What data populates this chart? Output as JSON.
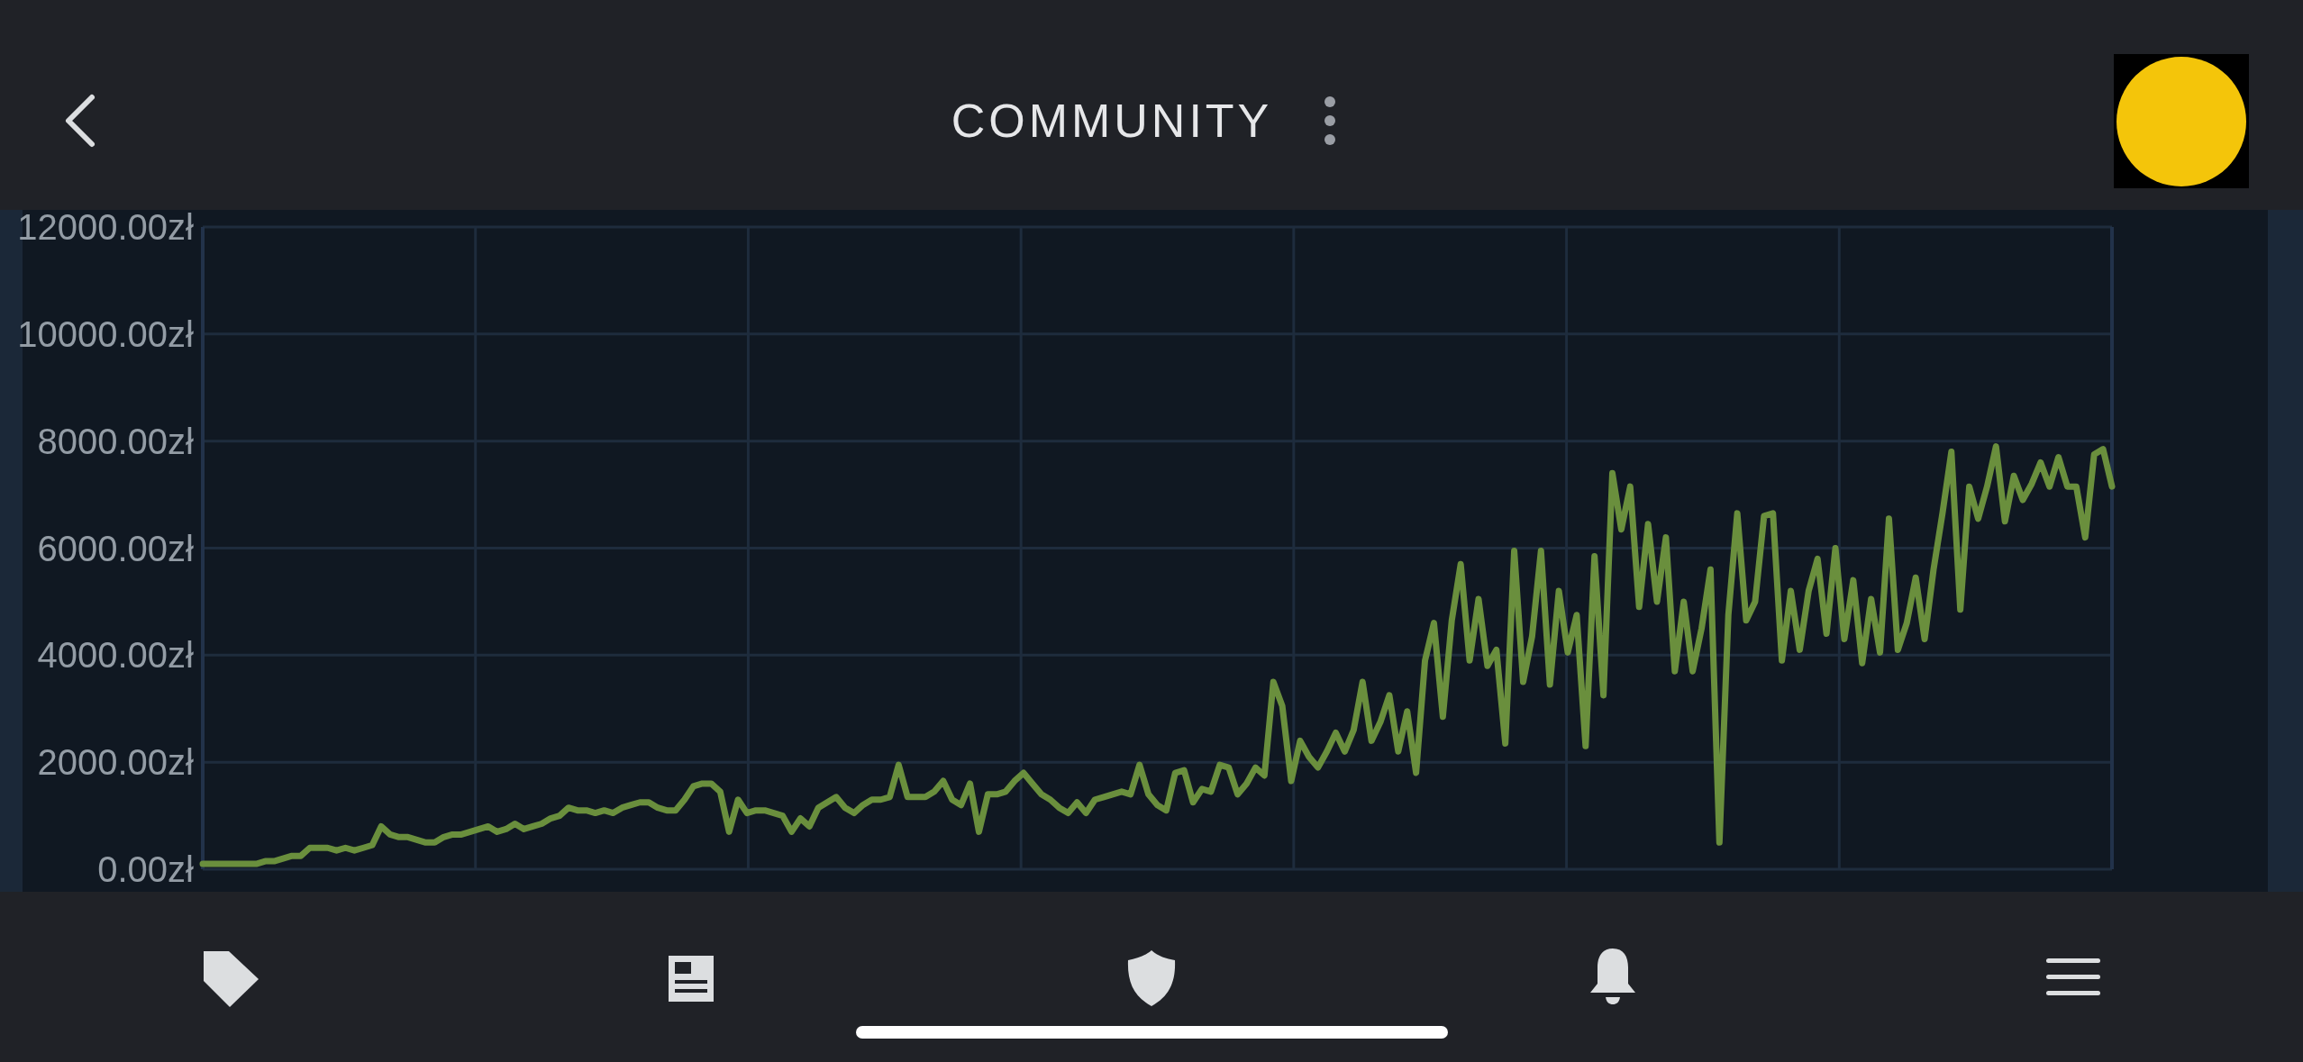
{
  "chart_data": {
    "type": "line",
    "title": "COMMUNITY",
    "categories": [
      null,
      null,
      null,
      null,
      null,
      null,
      null,
      null,
      null,
      null,
      null,
      null,
      null,
      null,
      null,
      null,
      null,
      null,
      null,
      null,
      null,
      null,
      null,
      null,
      null,
      null,
      null,
      null,
      null,
      null,
      null,
      null,
      null,
      null,
      null,
      null,
      null,
      null,
      null,
      null,
      null,
      null,
      null,
      null,
      null,
      null,
      null,
      null,
      null,
      null,
      null,
      null,
      null,
      null,
      null,
      null,
      null,
      null,
      null,
      null,
      null,
      null,
      null,
      null,
      null,
      null,
      null,
      null,
      null,
      null,
      null,
      null,
      null,
      null,
      null,
      null,
      null,
      null,
      null,
      null,
      null,
      null,
      null,
      null,
      null,
      null,
      null,
      null,
      null,
      null,
      null,
      null,
      null,
      null,
      null,
      null,
      null,
      null,
      null,
      null,
      null,
      null,
      null,
      null,
      null,
      null,
      null,
      null,
      null,
      null,
      null,
      null,
      null,
      null,
      null,
      null,
      null,
      null,
      null,
      null,
      null,
      null,
      null,
      null,
      null,
      null,
      null,
      null,
      null,
      null,
      null,
      null,
      null,
      null,
      null,
      null,
      null,
      null,
      null,
      null,
      null,
      null,
      null,
      null,
      null,
      null,
      null,
      null,
      null,
      null,
      null,
      null,
      null,
      null,
      null,
      null,
      null,
      null,
      null,
      null,
      null,
      null,
      null,
      null,
      null,
      null,
      null,
      null,
      null,
      null,
      null,
      null,
      null,
      null,
      null,
      null,
      null,
      null,
      null,
      null,
      null,
      null,
      null,
      null,
      null,
      null,
      null,
      null,
      null,
      null,
      null,
      null,
      null,
      null,
      null,
      null,
      null,
      null,
      null,
      null,
      null,
      null,
      null,
      null,
      null,
      null,
      null,
      null,
      null,
      null,
      null,
      null,
      null,
      null,
      null
    ],
    "color": "#6a8f3d",
    "values": [
      100,
      100,
      100,
      100,
      100,
      100,
      100,
      150,
      150,
      200,
      250,
      250,
      400,
      400,
      400,
      350,
      400,
      350,
      400,
      450,
      800,
      650,
      600,
      600,
      550,
      500,
      500,
      600,
      650,
      650,
      700,
      750,
      800,
      700,
      750,
      850,
      750,
      800,
      850,
      950,
      1000,
      1150,
      1100,
      1100,
      1050,
      1100,
      1050,
      1150,
      1200,
      1250,
      1250,
      1150,
      1100,
      1100,
      1300,
      1550,
      1600,
      1600,
      1450,
      700,
      1300,
      1050,
      1100,
      1100,
      1050,
      1000,
      700,
      950,
      800,
      1150,
      1250,
      1350,
      1150,
      1050,
      1200,
      1300,
      1300,
      1350,
      1950,
      1350,
      1350,
      1350,
      1450,
      1650,
      1300,
      1200,
      1600,
      700,
      1400,
      1400,
      1450,
      1650,
      1800,
      1600,
      1400,
      1300,
      1150,
      1050,
      1250,
      1050,
      1300,
      1350,
      1400,
      1450,
      1400,
      1950,
      1400,
      1200,
      1100,
      1800,
      1850,
      1250,
      1500,
      1450,
      1950,
      1900,
      1400,
      1600,
      1900,
      1750,
      3500,
      3050,
      1650,
      2400,
      2100,
      1900,
      2200,
      2550,
      2200,
      2600,
      3500,
      2400,
      2750,
      3250,
      2200,
      2950,
      1800,
      3900,
      4600,
      2850,
      4650,
      5700,
      3900,
      5050,
      3800,
      4100,
      2350,
      5950,
      3500,
      4350,
      5950,
      3450,
      5200,
      4050,
      4750,
      2300,
      5850,
      3250,
      7400,
      6350,
      7150,
      4900,
      6450,
      5000,
      6200,
      3700,
      5000,
      3700,
      4500,
      5600,
      500,
      4750,
      6650,
      4650,
      5000,
      6600,
      6650,
      3900,
      5200,
      4100,
      5200,
      5800,
      4400,
      6000,
      4300,
      5400,
      3850,
      5050,
      4050,
      6550,
      4100,
      4600,
      5450,
      4300,
      5600,
      6650,
      7800,
      4850,
      7150,
      6550,
      7150,
      7900,
      6500,
      7350,
      6900,
      7200,
      7600,
      7150,
      7700,
      7150,
      7150,
      6200,
      7750,
      7850,
      7150
    ],
    "ylim": [
      0,
      12000
    ],
    "yticks": [
      {
        "value": 0,
        "label": "0.00zł"
      },
      {
        "value": 2000,
        "label": "2000.00zł"
      },
      {
        "value": 4000,
        "label": "4000.00zł"
      },
      {
        "value": 6000,
        "label": "6000.00zł"
      },
      {
        "value": 8000,
        "label": "8000.00zł"
      },
      {
        "value": 10000,
        "label": "10000.00zł"
      },
      {
        "value": 12000,
        "label": "12000.00zł"
      }
    ],
    "grid": true,
    "tick_labels": "y"
  }
}
